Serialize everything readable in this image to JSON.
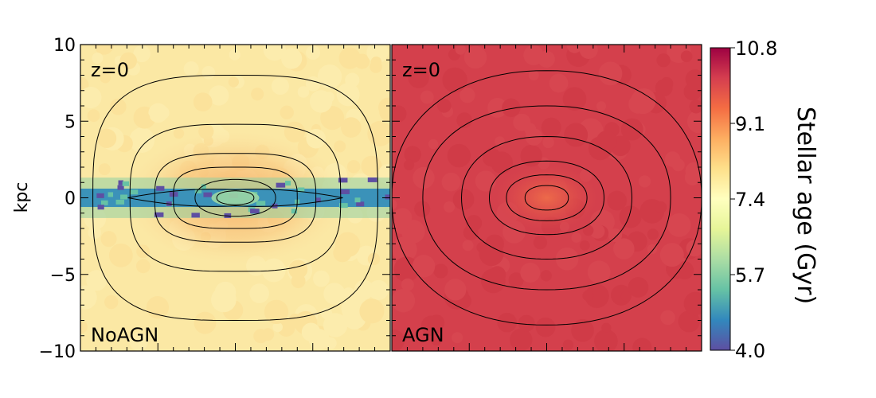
{
  "chart_data": {
    "type": "heatmap",
    "ylabel": "kpc",
    "ylim": [
      -10,
      10
    ],
    "xlim": [
      -10,
      10
    ],
    "yticks": [
      {
        "value": 10,
        "label": "10"
      },
      {
        "value": 5,
        "label": "5"
      },
      {
        "value": 0,
        "label": "0"
      },
      {
        "value": -5,
        "label": "−5"
      },
      {
        "value": -10,
        "label": "−10"
      }
    ],
    "panels": [
      {
        "id": "noagn",
        "redshift_label": "z=0",
        "name_label": "NoAGN",
        "background_color": "#fbe8a4",
        "contour_levels": [
          {
            "a": 1.2,
            "b": 0.45
          },
          {
            "a": 2.6,
            "b": 1.2
          },
          {
            "a": 4.0,
            "b": 2.0
          },
          {
            "a": 5.2,
            "b": 2.9
          },
          {
            "a": 6.8,
            "b": 4.8
          },
          {
            "a": 9.2,
            "b": 8.0
          }
        ],
        "thin_disc": {
          "present": true,
          "half_thickness_kpc": 0.6,
          "age_gyr": 4.8
        }
      },
      {
        "id": "agn",
        "redshift_label": "z=0",
        "name_label": "AGN",
        "background_color": "#d4404c",
        "contour_levels": [
          {
            "a": 1.4,
            "b": 0.8
          },
          {
            "a": 2.6,
            "b": 1.5
          },
          {
            "a": 3.7,
            "b": 2.4
          },
          {
            "a": 5.5,
            "b": 4.0
          },
          {
            "a": 8.0,
            "b": 6.0
          },
          {
            "a": 10.0,
            "b": 8.3
          }
        ],
        "thin_disc": {
          "present": false
        }
      }
    ],
    "colorbar": {
      "label": "Stellar age (Gyr)",
      "range": [
        4.0,
        10.8
      ],
      "colormap": "Spectral_r",
      "ticks": [
        {
          "value": 10.8,
          "label": "10.8"
        },
        {
          "value": 9.1,
          "label": "9.1"
        },
        {
          "value": 7.4,
          "label": "7.4"
        },
        {
          "value": 5.7,
          "label": "5.7"
        },
        {
          "value": 4.0,
          "label": "4.0"
        }
      ],
      "stops": [
        "#5e4fa2",
        "#3288bd",
        "#66c2a5",
        "#abdda4",
        "#e6f598",
        "#ffffbf",
        "#fee08b",
        "#fdae61",
        "#f46d43",
        "#d53e4f",
        "#9e0142"
      ]
    }
  }
}
